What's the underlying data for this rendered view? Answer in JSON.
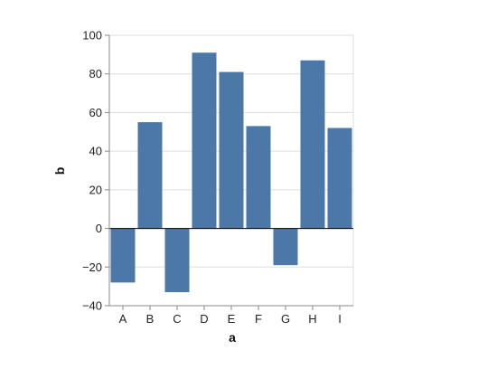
{
  "chart_data": {
    "type": "bar",
    "title": "",
    "xlabel": "a",
    "ylabel": "b",
    "categories": [
      "A",
      "B",
      "C",
      "D",
      "E",
      "F",
      "G",
      "H",
      "I"
    ],
    "values": [
      -28,
      55,
      -33,
      91,
      81,
      53,
      -19,
      87,
      52
    ],
    "ylim": [
      -40,
      100
    ],
    "yticks": [
      -40,
      -20,
      0,
      20,
      40,
      60,
      80,
      100
    ],
    "ytick_labels": [
      "−40",
      "−20",
      "0",
      "20",
      "40",
      "60",
      "80",
      "100"
    ],
    "grid": true,
    "bar_color": "#4c78a8",
    "grid_color": "#dddddd",
    "axis_color": "#888888",
    "zero_line_color": "#000000"
  }
}
